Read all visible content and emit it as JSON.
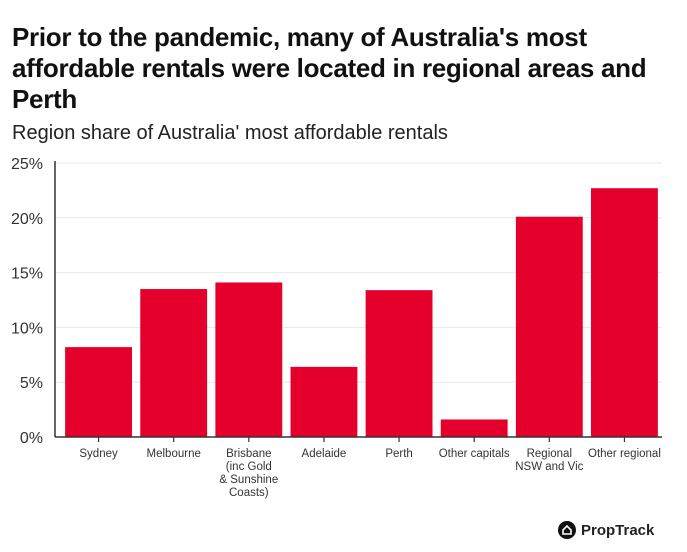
{
  "chart_data": {
    "type": "bar",
    "title": "Prior to the pandemic, many of Australia's most affordable rentals were located in regional areas and Perth",
    "subtitle": "Region share of Australia' most affordable rentals",
    "xlabel": "",
    "ylabel": "",
    "categories": [
      [
        "Sydney"
      ],
      [
        "Melbourne"
      ],
      [
        "Brisbane",
        "(inc Gold",
        "& Sunshine",
        "Coasts)"
      ],
      [
        "Adelaide"
      ],
      [
        "Perth"
      ],
      [
        "Other capitals"
      ],
      [
        "Regional",
        "NSW and Vic"
      ],
      [
        "Other regional"
      ]
    ],
    "values": [
      8.2,
      13.5,
      14.1,
      6.4,
      13.4,
      1.6,
      20.1,
      22.7
    ],
    "ylim": [
      0,
      25
    ],
    "yticks": [
      0,
      5,
      10,
      15,
      20,
      25
    ],
    "ytick_labels": [
      "0%",
      "5%",
      "10%",
      "15%",
      "20%",
      "25%"
    ],
    "grid": "horizontal",
    "bar_color": "#e4002b"
  },
  "brand": {
    "name": "PropTrack",
    "icon": "house-icon"
  }
}
